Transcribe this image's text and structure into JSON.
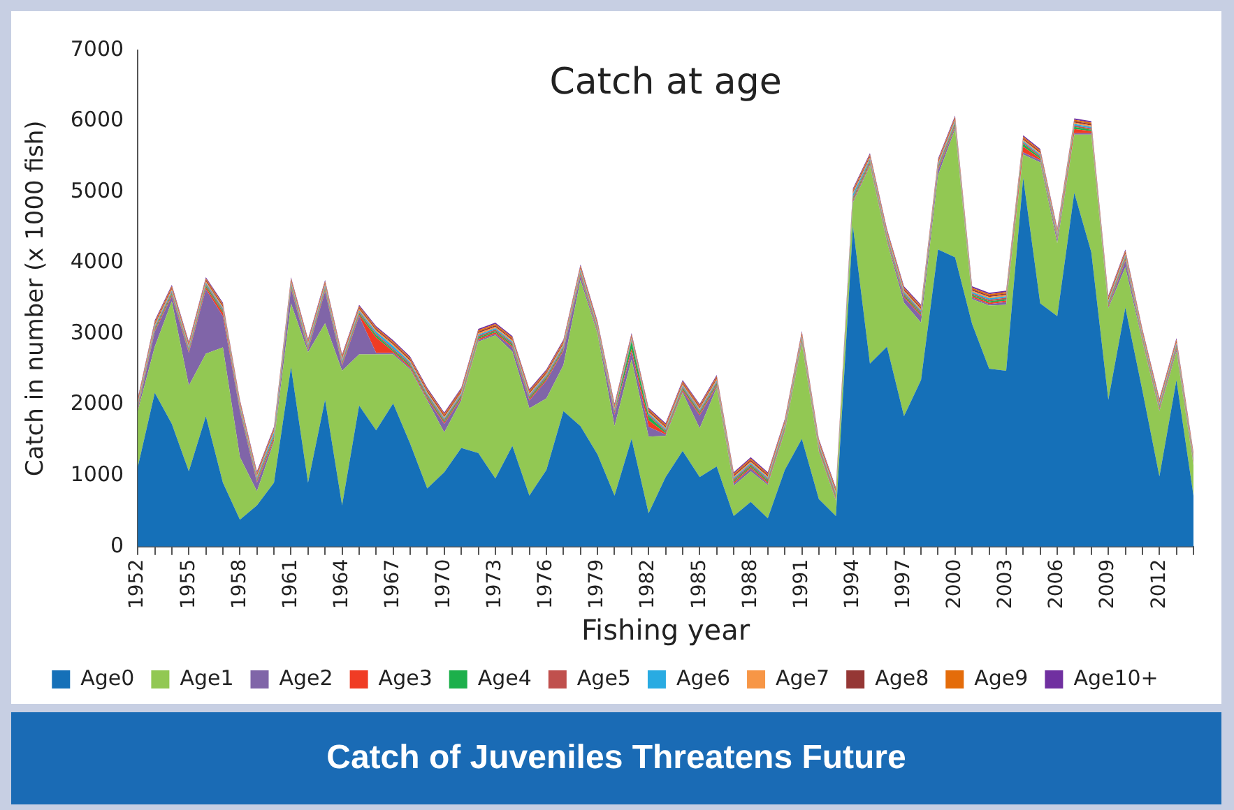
{
  "chart_data": {
    "type": "area",
    "stacked": true,
    "title": "Catch at age",
    "xlabel": "Fishing year",
    "ylabel": "Catch in number (x 1000 fish)",
    "legend": "bottom",
    "annotations": [
      "Catch of Juveniles Threatens Future"
    ],
    "categories": [
      "1952",
      null,
      null,
      "1955",
      null,
      null,
      "1958",
      null,
      null,
      "1961",
      null,
      null,
      "1964",
      null,
      null,
      "1967",
      null,
      null,
      "1970",
      null,
      null,
      "1973",
      null,
      null,
      "1976",
      null,
      null,
      "1979",
      null,
      null,
      "1982",
      null,
      null,
      "1985",
      null,
      null,
      "1988",
      null,
      null,
      "1991",
      null,
      null,
      "1994",
      null,
      null,
      "1997",
      null,
      null,
      "2000",
      null,
      null,
      "2003",
      null,
      null,
      "2006",
      null,
      null,
      "2009",
      null,
      null,
      "2012",
      null,
      null
    ],
    "ylim": [
      0,
      7000
    ],
    "yticks": [
      0,
      1000,
      2000,
      3000,
      4000,
      5000,
      6000,
      7000
    ],
    "series": [
      {
        "name": "Age0",
        "color": "#1570b8",
        "values": [
          1120,
          2170,
          1730,
          1060,
          1840,
          900,
          380,
          580,
          900,
          2530,
          900,
          2070,
          580,
          1990,
          1640,
          2020,
          1450,
          820,
          1050,
          1390,
          1320,
          960,
          1420,
          720,
          1080,
          1910,
          1700,
          1300,
          720,
          1520,
          470,
          980,
          1350,
          980,
          1130,
          430,
          630,
          400,
          1080,
          1520,
          670,
          430,
          4520,
          2580,
          2820,
          1840,
          2350,
          4190,
          4080,
          3140,
          2510,
          2480,
          5200,
          3430,
          3250,
          4990,
          4150,
          2070,
          3370,
          2200,
          990,
          2350,
          720
        ]
      },
      {
        "name": "Age1",
        "color": "#92c853",
        "values": [
          790,
          650,
          1730,
          1210,
          880,
          1910,
          880,
          200,
          580,
          900,
          1840,
          1080,
          1900,
          720,
          1070,
          690,
          1050,
          1240,
          560,
          670,
          1570,
          2020,
          1330,
          1230,
          1010,
          650,
          2060,
          1700,
          980,
          1120,
          1080,
          580,
          820,
          690,
          1110,
          430,
          430,
          470,
          540,
          1340,
          670,
          220,
          330,
          2790,
          1480,
          1600,
          810,
          1050,
          1810,
          350,
          890,
          930,
          330,
          1990,
          1030,
          820,
          1660,
          1290,
          570,
          690,
          920,
          400,
          430
        ]
      },
      {
        "name": "Age2",
        "color": "#8065a8",
        "values": [
          20,
          210,
          70,
          460,
          910,
          440,
          650,
          120,
          20,
          210,
          30,
          450,
          70,
          540,
          20,
          20,
          20,
          20,
          120,
          20,
          20,
          20,
          60,
          110,
          250,
          200,
          60,
          20,
          160,
          110,
          140,
          20,
          20,
          180,
          20,
          30,
          40,
          20,
          20,
          20,
          20,
          20,
          20,
          20,
          20,
          70,
          90,
          70,
          30,
          20,
          20,
          40,
          30,
          30,
          50,
          20,
          20,
          20,
          90,
          20,
          20,
          30,
          20
        ]
      },
      {
        "name": "Age3",
        "color": "#f03c24",
        "values": [
          20,
          20,
          20,
          20,
          30,
          50,
          20,
          20,
          30,
          20,
          20,
          20,
          20,
          20,
          220,
          20,
          20,
          20,
          20,
          20,
          20,
          20,
          20,
          20,
          20,
          20,
          20,
          20,
          20,
          40,
          90,
          20,
          20,
          20,
          20,
          20,
          20,
          20,
          20,
          20,
          20,
          20,
          20,
          20,
          20,
          20,
          20,
          20,
          20,
          20,
          20,
          20,
          80,
          20,
          20,
          60,
          30,
          20,
          20,
          20,
          20,
          20,
          20
        ]
      },
      {
        "name": "Age4",
        "color": "#1cb04b",
        "values": [
          20,
          20,
          20,
          20,
          20,
          20,
          20,
          20,
          20,
          20,
          20,
          20,
          20,
          20,
          30,
          20,
          20,
          20,
          20,
          20,
          20,
          20,
          20,
          20,
          20,
          20,
          20,
          20,
          20,
          100,
          60,
          20,
          20,
          20,
          20,
          20,
          20,
          20,
          20,
          20,
          20,
          20,
          20,
          20,
          20,
          20,
          20,
          20,
          20,
          20,
          20,
          20,
          40,
          20,
          20,
          30,
          20,
          20,
          20,
          20,
          20,
          20,
          20
        ]
      },
      {
        "name": "Age5",
        "color": "#c0504d",
        "values": [
          20,
          20,
          20,
          20,
          20,
          20,
          20,
          20,
          20,
          20,
          20,
          20,
          20,
          20,
          20,
          20,
          20,
          20,
          20,
          20,
          20,
          20,
          20,
          20,
          20,
          20,
          20,
          20,
          20,
          20,
          20,
          20,
          20,
          20,
          20,
          20,
          20,
          20,
          20,
          20,
          20,
          20,
          20,
          20,
          20,
          20,
          20,
          20,
          20,
          20,
          20,
          20,
          20,
          20,
          20,
          20,
          20,
          20,
          20,
          20,
          20,
          20,
          20
        ]
      },
      {
        "name": "Age6",
        "color": "#29abe2",
        "values": [
          20,
          20,
          20,
          20,
          20,
          20,
          20,
          20,
          40,
          20,
          20,
          20,
          20,
          20,
          30,
          40,
          20,
          20,
          20,
          20,
          20,
          20,
          20,
          20,
          20,
          20,
          20,
          20,
          20,
          20,
          20,
          20,
          20,
          20,
          20,
          20,
          20,
          20,
          20,
          20,
          20,
          20,
          40,
          20,
          20,
          20,
          20,
          20,
          20,
          20,
          20,
          20,
          20,
          20,
          20,
          20,
          20,
          20,
          20,
          20,
          20,
          20,
          20
        ]
      },
      {
        "name": "Age7",
        "color": "#f79646",
        "values": [
          20,
          20,
          20,
          20,
          20,
          20,
          20,
          20,
          20,
          20,
          20,
          20,
          20,
          20,
          20,
          20,
          20,
          20,
          20,
          20,
          20,
          20,
          20,
          20,
          20,
          20,
          20,
          20,
          20,
          20,
          20,
          20,
          20,
          20,
          20,
          20,
          20,
          20,
          20,
          20,
          20,
          20,
          20,
          20,
          20,
          20,
          20,
          20,
          20,
          20,
          20,
          20,
          20,
          20,
          20,
          20,
          20,
          20,
          20,
          20,
          20,
          20,
          20
        ]
      },
      {
        "name": "Age8",
        "color": "#953735",
        "values": [
          20,
          20,
          20,
          20,
          20,
          20,
          20,
          20,
          20,
          20,
          20,
          20,
          20,
          20,
          20,
          20,
          20,
          20,
          20,
          20,
          20,
          20,
          20,
          20,
          20,
          20,
          20,
          20,
          20,
          20,
          20,
          20,
          20,
          20,
          20,
          20,
          20,
          20,
          20,
          20,
          20,
          20,
          20,
          20,
          20,
          20,
          20,
          20,
          20,
          20,
          20,
          20,
          20,
          20,
          20,
          20,
          20,
          20,
          20,
          20,
          20,
          20,
          20
        ]
      },
      {
        "name": "Age9",
        "color": "#e46c0a",
        "values": [
          20,
          20,
          20,
          20,
          20,
          20,
          20,
          20,
          20,
          20,
          20,
          20,
          20,
          20,
          20,
          20,
          20,
          20,
          20,
          20,
          20,
          20,
          20,
          20,
          20,
          20,
          20,
          20,
          20,
          20,
          20,
          20,
          20,
          20,
          20,
          20,
          20,
          20,
          20,
          20,
          20,
          20,
          20,
          20,
          20,
          20,
          20,
          20,
          20,
          20,
          20,
          20,
          20,
          20,
          20,
          20,
          20,
          20,
          20,
          20,
          20,
          20,
          20
        ]
      },
      {
        "name": "Age10+",
        "color": "#7030a0",
        "values": [
          20,
          20,
          20,
          20,
          20,
          20,
          20,
          20,
          20,
          20,
          20,
          20,
          20,
          20,
          20,
          20,
          20,
          20,
          20,
          20,
          20,
          20,
          20,
          20,
          20,
          20,
          20,
          20,
          20,
          20,
          20,
          20,
          20,
          20,
          20,
          20,
          20,
          20,
          20,
          20,
          20,
          20,
          20,
          20,
          20,
          20,
          20,
          20,
          20,
          20,
          20,
          20,
          20,
          20,
          20,
          20,
          20,
          20,
          20,
          20,
          20,
          20,
          20
        ]
      }
    ]
  }
}
